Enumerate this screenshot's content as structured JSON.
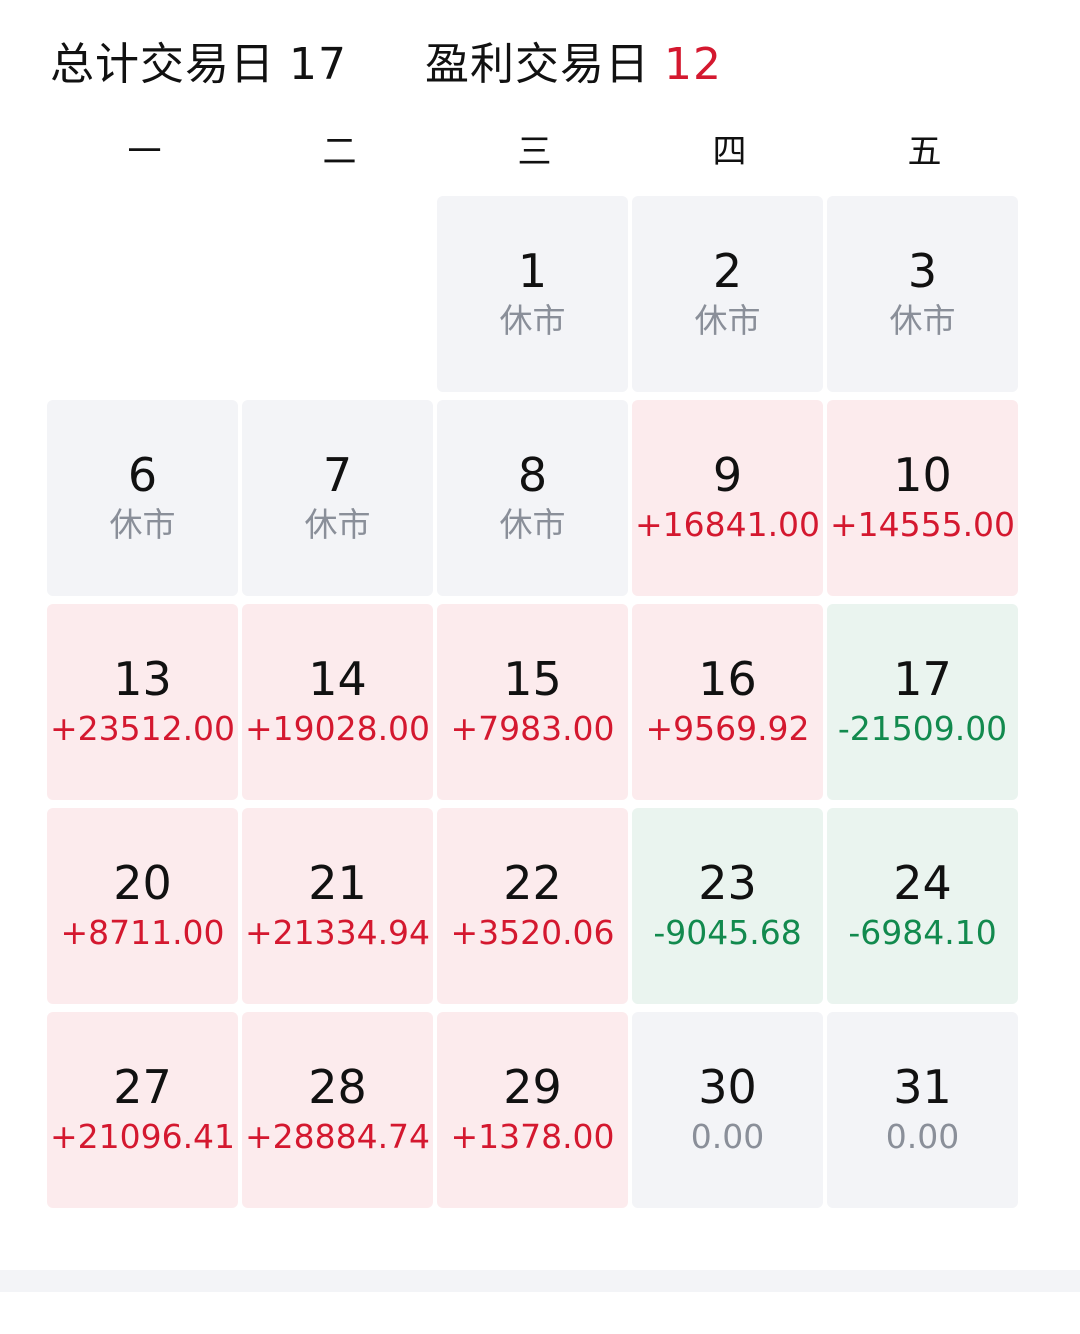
{
  "header": {
    "total_label": "总计交易日",
    "total_value": "17",
    "profit_label": "盈利交易日",
    "profit_value": "12"
  },
  "colors": {
    "profit": "#d4182f",
    "loss": "#128a4e",
    "neutral": "#8a8f99",
    "profit_bg": "#fcebed",
    "loss_bg": "#eaf4ef",
    "closed_bg": "#f3f4f7"
  },
  "weekdays": [
    "一",
    "二",
    "三",
    "四",
    "五"
  ],
  "calendar": {
    "cells": [
      {
        "type": "empty"
      },
      {
        "type": "empty"
      },
      {
        "type": "closed",
        "day": "1",
        "value": "休市"
      },
      {
        "type": "closed",
        "day": "2",
        "value": "休市"
      },
      {
        "type": "closed",
        "day": "3",
        "value": "休市"
      },
      {
        "type": "closed",
        "day": "6",
        "value": "休市"
      },
      {
        "type": "closed",
        "day": "7",
        "value": "休市"
      },
      {
        "type": "closed",
        "day": "8",
        "value": "休市"
      },
      {
        "type": "profit",
        "day": "9",
        "value": "+16841.00"
      },
      {
        "type": "profit",
        "day": "10",
        "value": "+14555.00"
      },
      {
        "type": "profit",
        "day": "13",
        "value": "+23512.00"
      },
      {
        "type": "profit",
        "day": "14",
        "value": "+19028.00"
      },
      {
        "type": "profit",
        "day": "15",
        "value": "+7983.00"
      },
      {
        "type": "profit",
        "day": "16",
        "value": "+9569.92"
      },
      {
        "type": "loss",
        "day": "17",
        "value": "-21509.00"
      },
      {
        "type": "profit",
        "day": "20",
        "value": "+8711.00"
      },
      {
        "type": "profit",
        "day": "21",
        "value": "+21334.94"
      },
      {
        "type": "profit",
        "day": "22",
        "value": "+3520.06"
      },
      {
        "type": "loss",
        "day": "23",
        "value": "-9045.68"
      },
      {
        "type": "loss",
        "day": "24",
        "value": "-6984.10"
      },
      {
        "type": "profit",
        "day": "27",
        "value": "+21096.41"
      },
      {
        "type": "profit",
        "day": "28",
        "value": "+28884.74"
      },
      {
        "type": "profit",
        "day": "29",
        "value": "+1378.00"
      },
      {
        "type": "zero",
        "day": "30",
        "value": "0.00"
      },
      {
        "type": "zero",
        "day": "31",
        "value": "0.00"
      }
    ]
  }
}
